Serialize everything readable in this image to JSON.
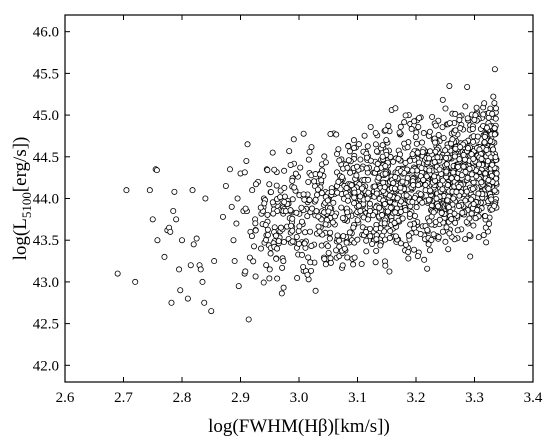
{
  "chart_data": {
    "type": "scatter",
    "title": "",
    "xlabel": "log(FWHM(Hβ)[km/s])",
    "ylabel_parts": {
      "pre": "log(L",
      "sub": "5100",
      "post": "[erg/s])"
    },
    "xlim": [
      2.6,
      3.4
    ],
    "ylim": [
      41.8,
      46.2
    ],
    "x_ticks": [
      "2.6",
      "2.7",
      "2.8",
      "2.9",
      "3.0",
      "3.1",
      "3.2",
      "3.3",
      "3.4"
    ],
    "y_ticks": [
      "42.0",
      "42.5",
      "43.0",
      "43.5",
      "44.0",
      "44.5",
      "45.0",
      "45.5",
      "46.0"
    ],
    "marker": "open-circle",
    "grid": false,
    "series": [
      {
        "points": [
          [
            2.69,
            43.1
          ],
          [
            2.705,
            44.1
          ],
          [
            2.72,
            43.0
          ],
          [
            2.745,
            44.1
          ],
          [
            2.75,
            43.75
          ],
          [
            2.755,
            44.35
          ],
          [
            2.757,
            44.34
          ],
          [
            2.758,
            43.5
          ],
          [
            2.77,
            43.3
          ],
          [
            2.775,
            43.62
          ],
          [
            2.778,
            43.65
          ],
          [
            2.78,
            43.6
          ],
          [
            2.782,
            42.75
          ],
          [
            2.785,
            43.85
          ],
          [
            2.787,
            44.08
          ],
          [
            2.79,
            43.75
          ],
          [
            2.795,
            43.15
          ],
          [
            2.797,
            42.9
          ],
          [
            2.8,
            43.5
          ],
          [
            2.81,
            42.8
          ],
          [
            2.815,
            43.2
          ],
          [
            2.818,
            44.1
          ],
          [
            2.82,
            43.45
          ],
          [
            2.825,
            43.52
          ],
          [
            2.83,
            43.2
          ],
          [
            2.832,
            43.15
          ],
          [
            2.835,
            43.0
          ],
          [
            2.838,
            42.75
          ],
          [
            2.84,
            44.0
          ],
          [
            2.85,
            42.65
          ],
          [
            2.855,
            43.25
          ],
          [
            2.87,
            43.78
          ],
          [
            2.875,
            44.15
          ],
          [
            2.882,
            44.35
          ],
          [
            2.885,
            43.9
          ],
          [
            2.888,
            43.5
          ],
          [
            2.89,
            43.25
          ],
          [
            2.893,
            43.7
          ],
          [
            2.895,
            44.0
          ],
          [
            2.897,
            42.95
          ],
          [
            2.9,
            44.3
          ],
          [
            2.905,
            43.85
          ],
          [
            2.907,
            43.1
          ],
          [
            2.91,
            44.45
          ],
          [
            2.912,
            44.65
          ],
          [
            2.914,
            42.55
          ],
          [
            2.917,
            43.6
          ],
          [
            2.92,
            44.1
          ],
          [
            2.925,
            43.75
          ],
          [
            2.93,
            44.2
          ],
          [
            2.935,
            43.4
          ],
          [
            2.94,
            44.0
          ],
          [
            2.945,
            44.35
          ],
          [
            2.95,
            43.15
          ],
          [
            2.955,
            44.55
          ],
          [
            2.958,
            43.95
          ]
        ]
      }
    ]
  }
}
